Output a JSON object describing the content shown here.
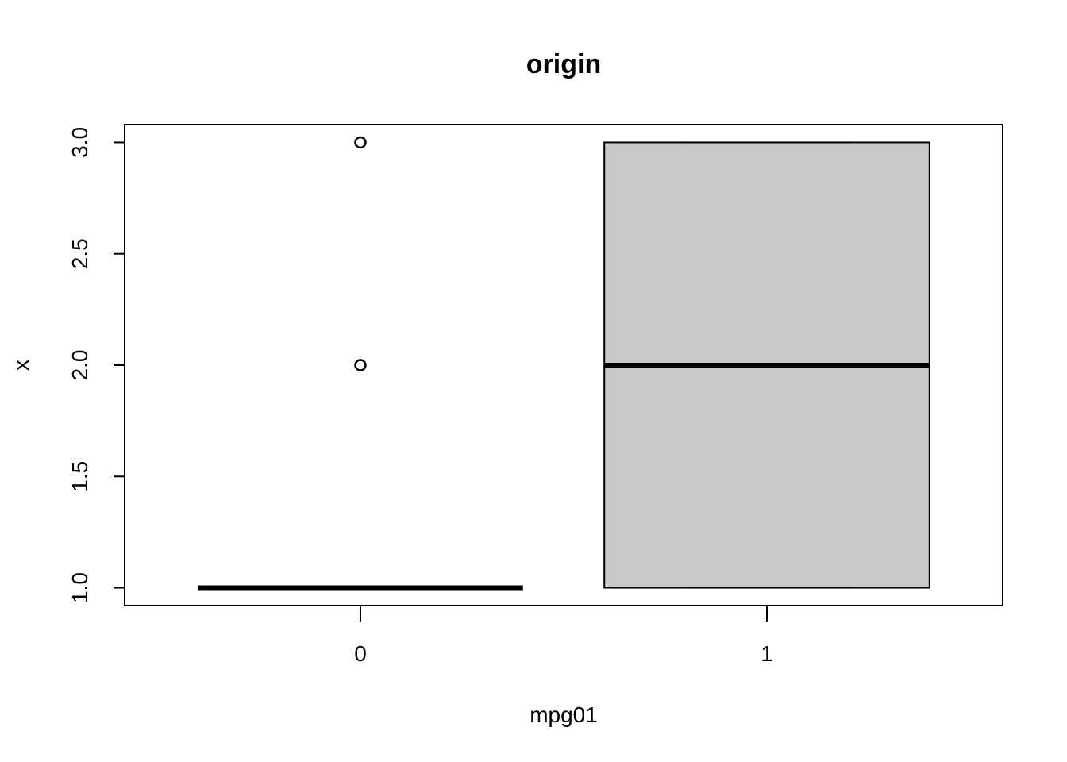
{
  "chart_data": {
    "type": "boxplot",
    "title": "origin",
    "xlabel": "mpg01",
    "ylabel": "x",
    "ylim": [
      0.92,
      3.08
    ],
    "y_ticks": [
      1.0,
      1.5,
      2.0,
      2.5,
      3.0
    ],
    "y_tick_labels": [
      "1.0",
      "1.5",
      "2.0",
      "2.5",
      "3.0"
    ],
    "categories": [
      "0",
      "1"
    ],
    "box_color": "#c8c8c8",
    "boxes": [
      {
        "category": "0",
        "whisker_low": 1,
        "q1": 1,
        "median": 1,
        "q3": 1,
        "whisker_high": 1,
        "outliers": [
          2,
          3
        ]
      },
      {
        "category": "1",
        "whisker_low": 1,
        "q1": 1,
        "median": 2,
        "q3": 3,
        "whisker_high": 3,
        "outliers": []
      }
    ]
  }
}
